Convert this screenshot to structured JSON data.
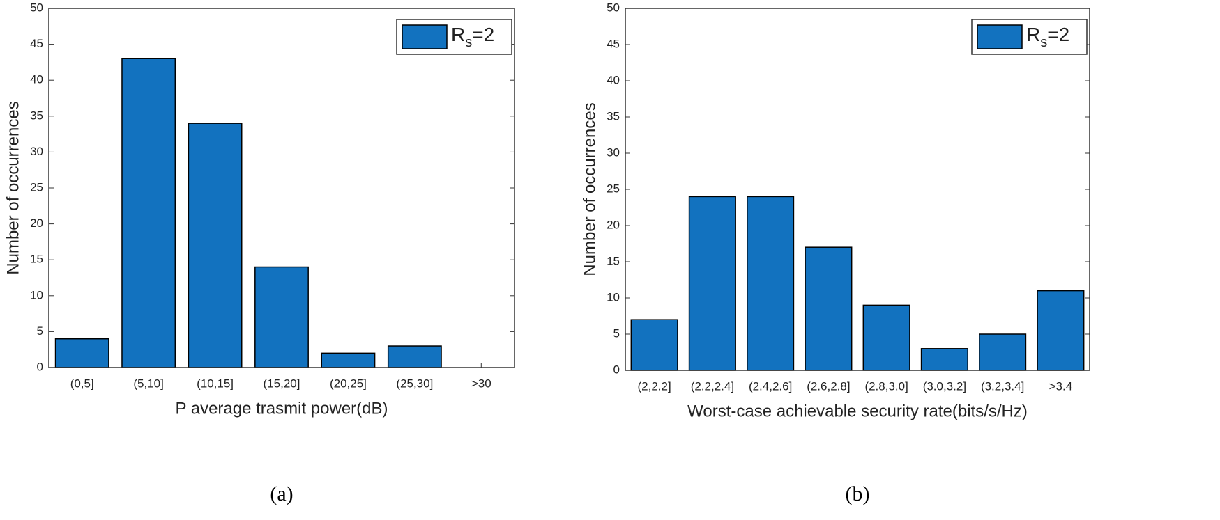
{
  "chart_data": [
    {
      "type": "bar",
      "caption": "(a)",
      "xlabel": "P average trasmit power(dB)",
      "ylabel": "Number of occurrences",
      "categories": [
        "(0,5]",
        "(5,10]",
        "(10,15]",
        "(15,20]",
        "(20,25]",
        "(25,30]",
        ">30"
      ],
      "series": [
        {
          "name": "Rs=2",
          "color": "#1272bf",
          "values": [
            4,
            43,
            34,
            14,
            2,
            3,
            0
          ]
        }
      ],
      "ylim": [
        0,
        50
      ],
      "yticks": [
        0,
        5,
        10,
        15,
        20,
        25,
        30,
        35,
        40,
        45,
        50
      ],
      "grid": false,
      "legend": "upper right"
    },
    {
      "type": "bar",
      "caption": "(b)",
      "xlabel": "Worst-case achievable security rate(bits/s/Hz)",
      "ylabel": "Number of occurrences",
      "categories": [
        "(2,2.2]",
        "(2.2,2.4]",
        "(2.4,2.6]",
        "(2.6,2.8]",
        "(2.8,3.0]",
        "(3.0,3.2]",
        "(3.2,3.4]",
        ">3.4"
      ],
      "series": [
        {
          "name": "Rs=2",
          "color": "#1272bf",
          "values": [
            7,
            24,
            24,
            17,
            9,
            3,
            5,
            11
          ]
        }
      ],
      "ylim": [
        0,
        50
      ],
      "yticks": [
        0,
        5,
        10,
        15,
        20,
        25,
        30,
        35,
        40,
        45,
        50
      ],
      "grid": false,
      "legend": "upper right"
    }
  ]
}
